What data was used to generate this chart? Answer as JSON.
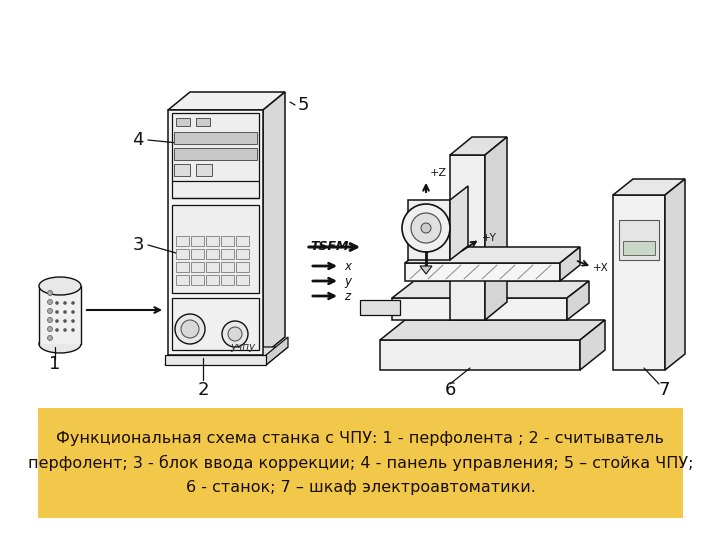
{
  "bg_color": "#ffffff",
  "caption_bg_color": "#f2c84b",
  "caption_text_color": "#1a0e00",
  "caption_text_line1": "Функциональная схема станка с ЧПУ: 1 - перфолента ; 2 - считыватель",
  "caption_text_line2": "перфолент; 3 - блок ввода коррекции; 4 - панель управления; 5 – стойка ЧПУ;",
  "caption_text_line3": "6 - станок; 7 – шкаф электроавтоматики.",
  "caption_fontsize": 11.5,
  "fig_width": 7.2,
  "fig_height": 5.4,
  "dpi": 100,
  "lc": "#111111",
  "lw": 1.1
}
